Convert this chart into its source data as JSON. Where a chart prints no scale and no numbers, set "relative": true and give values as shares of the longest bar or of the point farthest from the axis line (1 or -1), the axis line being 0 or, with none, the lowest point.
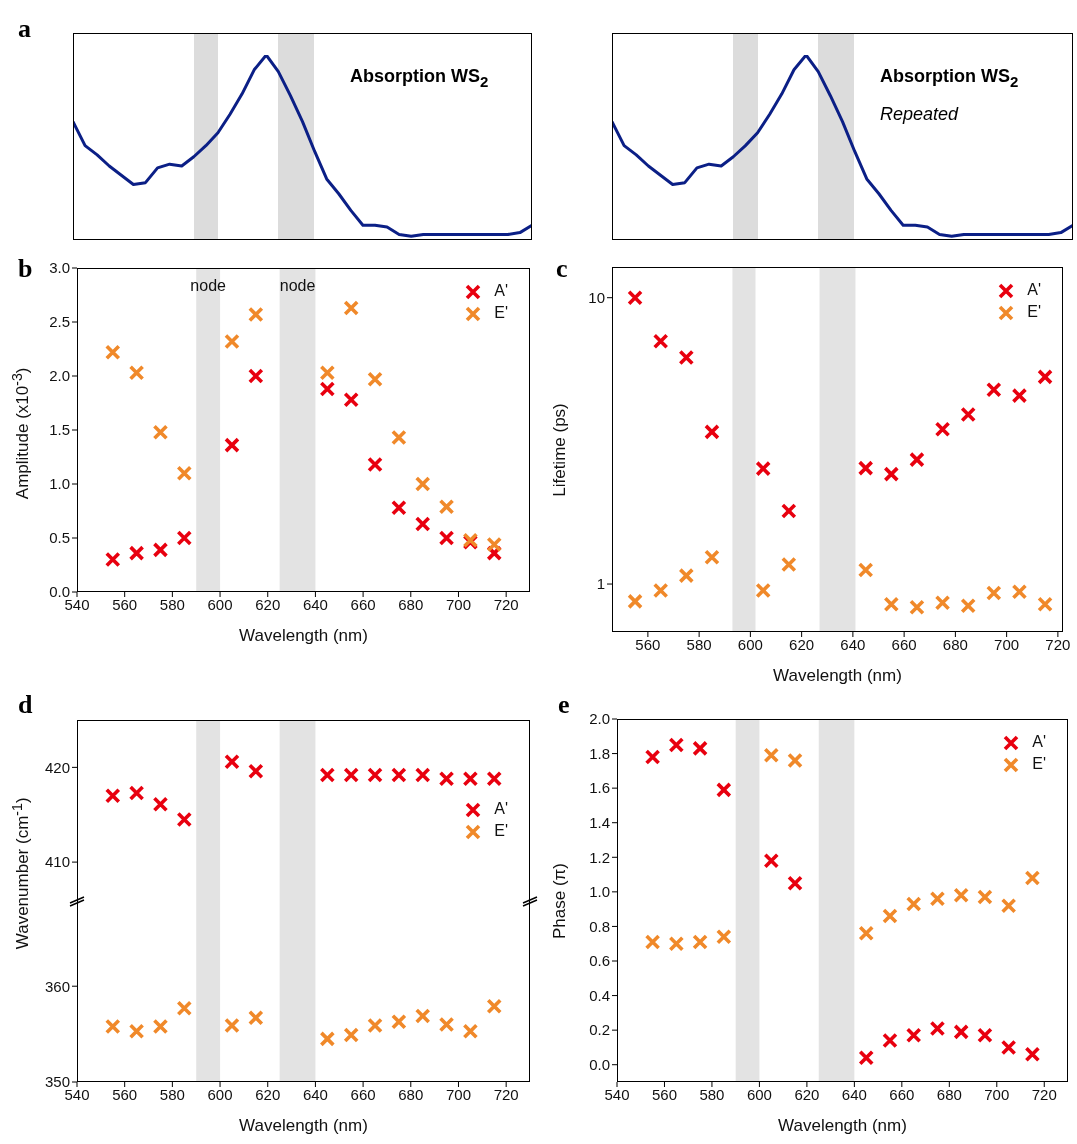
{
  "chart_data": [
    {
      "type": "line",
      "title": "a",
      "relative": true,
      "tick_labels": false,
      "line_style": "solid",
      "annotations": [
        "Absorption WS$_{2}$"
      ],
      "categories": [
        null,
        null,
        null,
        null,
        null,
        null,
        null,
        null,
        null,
        null,
        null,
        null,
        null,
        null,
        null,
        null,
        null,
        null,
        null,
        null,
        null,
        null,
        null,
        null,
        null,
        null,
        null,
        null,
        null,
        null,
        null,
        null,
        null,
        null,
        null,
        null,
        null,
        null,
        null
      ],
      "series": [
        {
          "color": "#0b1f86",
          "values": [
            0.64,
            0.51,
            0.46,
            0.4,
            0.35,
            0.3,
            0.31,
            0.39,
            0.41,
            0.4,
            0.45,
            0.51,
            0.58,
            0.68,
            0.79,
            0.92,
            1,
            0.91,
            0.78,
            0.64,
            0.48,
            0.33,
            0.25,
            0.16,
            0.08,
            0.08,
            0.07,
            0.03,
            0.02,
            0.03,
            0.03,
            0.03,
            0.03,
            0.03,
            0.03,
            0.03,
            0.03,
            0.04,
            0.08
          ]
        }
      ]
    },
    {
      "type": "line",
      "relative": true,
      "tick_labels": false,
      "line_style": "solid",
      "annotations": [
        "Absorption WS$_{2}$",
        "Repeated"
      ],
      "categories": [
        null,
        null,
        null,
        null,
        null,
        null,
        null,
        null,
        null,
        null,
        null,
        null,
        null,
        null,
        null,
        null,
        null,
        null,
        null,
        null,
        null,
        null,
        null,
        null,
        null,
        null,
        null,
        null,
        null,
        null,
        null,
        null,
        null,
        null,
        null,
        null,
        null,
        null,
        null
      ],
      "series": [
        {
          "color": "#0b1f86",
          "values": [
            0.64,
            0.51,
            0.46,
            0.4,
            0.35,
            0.3,
            0.31,
            0.39,
            0.41,
            0.4,
            0.45,
            0.51,
            0.58,
            0.68,
            0.79,
            0.92,
            1,
            0.91,
            0.78,
            0.64,
            0.48,
            0.33,
            0.25,
            0.16,
            0.08,
            0.08,
            0.07,
            0.03,
            0.02,
            0.03,
            0.03,
            0.03,
            0.03,
            0.03,
            0.03,
            0.03,
            0.03,
            0.04,
            0.08
          ]
        }
      ]
    },
    {
      "type": "scatter",
      "title": "b",
      "xlabel": "Wavelength (nm)",
      "ylabel": "Amplitude (x10$^{-3}$)",
      "xlim": [
        540,
        730
      ],
      "xticks": [
        540,
        560,
        580,
        600,
        620,
        640,
        660,
        680,
        700,
        720
      ],
      "ylim": [
        0,
        3
      ],
      "yticks": [
        {
          "value": 0,
          "label": "0.0"
        },
        {
          "value": 0.5,
          "label": "0.5"
        },
        {
          "value": 1,
          "label": "1.0"
        },
        {
          "value": 1.5,
          "label": "1.5"
        },
        {
          "value": 2,
          "label": "2.0"
        },
        {
          "value": 2.5,
          "label": "2.5"
        },
        {
          "value": 3,
          "label": "3.0"
        }
      ],
      "marker": "cross",
      "legend": "top right",
      "x": [
        555,
        565,
        575,
        585,
        605,
        615,
        645,
        655,
        665,
        675,
        685,
        695,
        705,
        715
      ],
      "series": [
        {
          "name": "A'",
          "color": "#e8000f",
          "values": [
            0.3,
            0.36,
            0.39,
            0.5,
            1.36,
            2.0,
            1.88,
            1.78,
            1.18,
            0.78,
            0.63,
            0.5,
            0.46,
            0.36
          ]
        },
        {
          "name": "E'",
          "color": "#f0892a",
          "values": [
            2.22,
            2.03,
            1.48,
            1.1,
            2.32,
            2.57,
            2.03,
            2.63,
            1.97,
            1.43,
            1.0,
            0.79,
            0.48,
            0.44
          ]
        }
      ],
      "bands": [
        {
          "axis": "x",
          "from": 590,
          "to": 600,
          "label": "node"
        },
        {
          "axis": "x",
          "from": 625,
          "to": 640,
          "label": "node"
        }
      ]
    },
    {
      "type": "scatter",
      "title": "c",
      "xlabel": "Wavelength (nm)",
      "ylabel": "Lifetime (ps)",
      "log": "y",
      "xlim": [
        546,
        722
      ],
      "xticks": [
        560,
        580,
        600,
        620,
        640,
        660,
        680,
        700,
        720
      ],
      "ylim": [
        0.68,
        12.8
      ],
      "yticks": [
        1,
        10
      ],
      "marker": "cross",
      "legend": "top right",
      "x": [
        555,
        565,
        575,
        585,
        605,
        615,
        645,
        655,
        665,
        675,
        685,
        695,
        705,
        715
      ],
      "series": [
        {
          "name": "A'",
          "color": "#e8000f",
          "values": [
            10.0,
            7.04,
            6.18,
            3.4,
            2.53,
            1.8,
            2.54,
            2.42,
            2.72,
            3.47,
            3.91,
            4.77,
            4.55,
            5.29
          ]
        },
        {
          "name": "E'",
          "color": "#f0892a",
          "values": [
            0.87,
            0.95,
            1.07,
            1.24,
            0.95,
            1.17,
            1.12,
            0.85,
            0.83,
            0.86,
            0.84,
            0.93,
            0.94,
            0.85
          ]
        }
      ],
      "bands": [
        {
          "axis": "x",
          "from": 593,
          "to": 602
        },
        {
          "axis": "x",
          "from": 627,
          "to": 641
        }
      ]
    },
    {
      "type": "scatter",
      "title": "d",
      "ylabel": "Wavenumber (cm$^{-1}$)",
      "tick_labels": "y",
      "xlim": [
        540,
        730
      ],
      "ylim": [
        406,
        425
      ],
      "yticks": [
        410,
        420
      ],
      "marker": "cross",
      "legend": "right",
      "x": [
        555,
        565,
        575,
        585,
        605,
        615,
        645,
        655,
        665,
        675,
        685,
        695,
        705,
        715
      ],
      "series": [
        {
          "name": "A'",
          "color": "#e8000f",
          "values": [
            417.0,
            417.3,
            416.1,
            414.5,
            420.6,
            419.6,
            419.2,
            419.2,
            419.2,
            419.2,
            419.2,
            418.8,
            418.8,
            418.8
          ]
        },
        {
          "name": "E'",
          "color": "#f0892a",
          "values": [
            null,
            null,
            null,
            null,
            null,
            null,
            null,
            null,
            null,
            null,
            null,
            null,
            null,
            null
          ]
        }
      ],
      "bands": [
        {
          "axis": "x",
          "from": 590,
          "to": 600
        },
        {
          "axis": "x",
          "from": 625,
          "to": 640
        }
      ]
    },
    {
      "type": "scatter",
      "xlabel": "Wavelength (nm)",
      "xlim": [
        540,
        730
      ],
      "xticks": [
        540,
        560,
        580,
        600,
        620,
        640,
        660,
        680,
        700,
        720
      ],
      "ylim": [
        350,
        369
      ],
      "yticks": [
        350,
        360
      ],
      "marker": "cross",
      "x": [
        555,
        565,
        575,
        585,
        605,
        615,
        645,
        655,
        665,
        675,
        685,
        695,
        705,
        715
      ],
      "series": [
        {
          "color": "#f0892a",
          "values": [
            355.8,
            355.3,
            355.8,
            357.7,
            355.9,
            356.7,
            354.5,
            354.9,
            355.9,
            356.3,
            356.9,
            356.0,
            355.3,
            357.9
          ]
        }
      ],
      "bands": [
        {
          "axis": "x",
          "from": 590,
          "to": 600
        },
        {
          "axis": "x",
          "from": 625,
          "to": 640
        }
      ]
    },
    {
      "type": "scatter",
      "title": "e",
      "xlabel": "Wavelength (nm)",
      "ylabel": "Phase (π)",
      "xlim": [
        540,
        730
      ],
      "xticks": [
        540,
        560,
        580,
        600,
        620,
        640,
        660,
        680,
        700,
        720
      ],
      "ylim": [
        -0.1,
        2.0
      ],
      "yticks": [
        {
          "value": 0,
          "label": "0.0"
        },
        {
          "value": 0.2,
          "label": "0.2"
        },
        {
          "value": 0.4,
          "label": "0.4"
        },
        {
          "value": 0.6,
          "label": "0.6"
        },
        {
          "value": 0.8,
          "label": "0.8"
        },
        {
          "value": 1,
          "label": "1.0"
        },
        {
          "value": 1.2,
          "label": "1.2"
        },
        {
          "value": 1.4,
          "label": "1.4"
        },
        {
          "value": 1.6,
          "label": "1.6"
        },
        {
          "value": 1.8,
          "label": "1.8"
        },
        {
          "value": 2,
          "label": "2.0"
        }
      ],
      "marker": "cross",
      "legend": "top right",
      "x": [
        555,
        565,
        575,
        585,
        605,
        615,
        645,
        655,
        665,
        675,
        685,
        695,
        705,
        715
      ],
      "series": [
        {
          "name": "A'",
          "color": "#e8000f",
          "values": [
            1.78,
            1.85,
            1.83,
            1.59,
            1.18,
            1.05,
            0.04,
            0.14,
            0.17,
            0.21,
            0.19,
            0.17,
            0.1,
            0.06
          ]
        },
        {
          "name": "E'",
          "color": "#f0892a",
          "values": [
            0.71,
            0.7,
            0.71,
            0.74,
            1.79,
            1.76,
            0.76,
            0.86,
            0.93,
            0.96,
            0.98,
            0.97,
            0.92,
            1.08
          ]
        }
      ],
      "bands": [
        {
          "axis": "x",
          "from": 590,
          "to": 600
        },
        {
          "axis": "x",
          "from": 625,
          "to": 640
        }
      ]
    }
  ]
}
